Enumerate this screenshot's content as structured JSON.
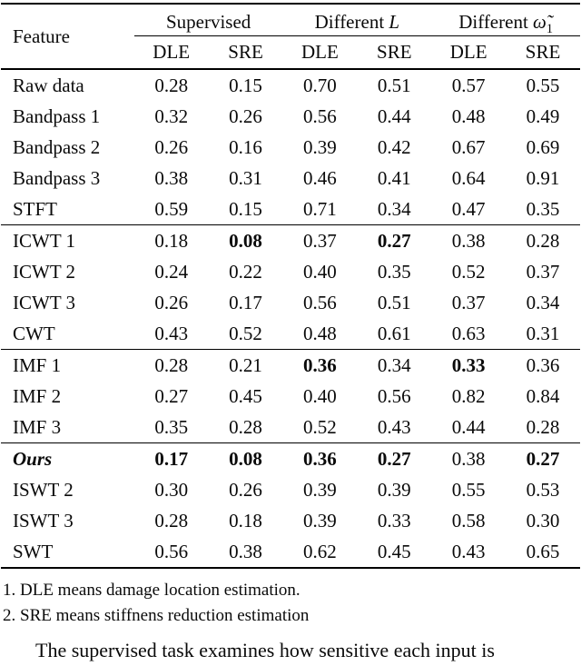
{
  "table": {
    "feature_header": "Feature",
    "groups": [
      {
        "label": "Supervised",
        "symbol": "",
        "subscript": ""
      },
      {
        "label": "Different ",
        "symbol": "L",
        "subscript": ""
      },
      {
        "label": "Different ",
        "symbol": "ω̃",
        "subscript": "1"
      }
    ],
    "subheaders": [
      "DLE",
      "SRE",
      "DLE",
      "SRE",
      "DLE",
      "SRE"
    ],
    "blocks": [
      {
        "rows": [
          {
            "feature": "Raw data",
            "values": [
              "0.28",
              "0.15",
              "0.70",
              "0.51",
              "0.57",
              "0.55"
            ],
            "bold": [
              false,
              false,
              false,
              false,
              false,
              false
            ]
          },
          {
            "feature": "Bandpass 1",
            "values": [
              "0.32",
              "0.26",
              "0.56",
              "0.44",
              "0.48",
              "0.49"
            ],
            "bold": [
              false,
              false,
              false,
              false,
              false,
              false
            ]
          },
          {
            "feature": "Bandpass 2",
            "values": [
              "0.26",
              "0.16",
              "0.39",
              "0.42",
              "0.67",
              "0.69"
            ],
            "bold": [
              false,
              false,
              false,
              false,
              false,
              false
            ]
          },
          {
            "feature": "Bandpass 3",
            "values": [
              "0.38",
              "0.31",
              "0.46",
              "0.41",
              "0.64",
              "0.91"
            ],
            "bold": [
              false,
              false,
              false,
              false,
              false,
              false
            ]
          },
          {
            "feature": "STFT",
            "values": [
              "0.59",
              "0.15",
              "0.71",
              "0.34",
              "0.47",
              "0.35"
            ],
            "bold": [
              false,
              false,
              false,
              false,
              false,
              false
            ]
          }
        ]
      },
      {
        "rows": [
          {
            "feature": "ICWT 1",
            "values": [
              "0.18",
              "0.08",
              "0.37",
              "0.27",
              "0.38",
              "0.28"
            ],
            "bold": [
              false,
              true,
              false,
              true,
              false,
              false
            ]
          },
          {
            "feature": "ICWT 2",
            "values": [
              "0.24",
              "0.22",
              "0.40",
              "0.35",
              "0.52",
              "0.37"
            ],
            "bold": [
              false,
              false,
              false,
              false,
              false,
              false
            ]
          },
          {
            "feature": "ICWT 3",
            "values": [
              "0.26",
              "0.17",
              "0.56",
              "0.51",
              "0.37",
              "0.34"
            ],
            "bold": [
              false,
              false,
              false,
              false,
              false,
              false
            ]
          },
          {
            "feature": "CWT",
            "values": [
              "0.43",
              "0.52",
              "0.48",
              "0.61",
              "0.63",
              "0.31"
            ],
            "bold": [
              false,
              false,
              false,
              false,
              false,
              false
            ]
          }
        ]
      },
      {
        "rows": [
          {
            "feature": "IMF 1",
            "values": [
              "0.28",
              "0.21",
              "0.36",
              "0.34",
              "0.33",
              "0.36"
            ],
            "bold": [
              false,
              false,
              true,
              false,
              true,
              false
            ]
          },
          {
            "feature": "IMF 2",
            "values": [
              "0.27",
              "0.45",
              "0.40",
              "0.56",
              "0.82",
              "0.84"
            ],
            "bold": [
              false,
              false,
              false,
              false,
              false,
              false
            ]
          },
          {
            "feature": "IMF 3",
            "values": [
              "0.35",
              "0.28",
              "0.52",
              "0.43",
              "0.44",
              "0.28"
            ],
            "bold": [
              false,
              false,
              false,
              false,
              false,
              false
            ]
          }
        ]
      },
      {
        "rows": [
          {
            "feature": "Ours",
            "feature_style": "bold-italic",
            "values": [
              "0.17",
              "0.08",
              "0.36",
              "0.27",
              "0.38",
              "0.27"
            ],
            "bold": [
              true,
              true,
              true,
              true,
              false,
              true
            ]
          },
          {
            "feature": "ISWT 2",
            "values": [
              "0.30",
              "0.26",
              "0.39",
              "0.39",
              "0.55",
              "0.53"
            ],
            "bold": [
              false,
              false,
              false,
              false,
              false,
              false
            ]
          },
          {
            "feature": "ISWT 3",
            "values": [
              "0.28",
              "0.18",
              "0.39",
              "0.33",
              "0.58",
              "0.30"
            ],
            "bold": [
              false,
              false,
              false,
              false,
              false,
              false
            ]
          },
          {
            "feature": "SWT",
            "values": [
              "0.56",
              "0.38",
              "0.62",
              "0.45",
              "0.43",
              "0.65"
            ],
            "bold": [
              false,
              false,
              false,
              false,
              false,
              false
            ]
          }
        ]
      }
    ]
  },
  "footnotes": [
    "1. DLE means damage location estimation.",
    "2. SRE means stiffnens reduction estimation"
  ],
  "paragraph": "The supervised task examines how sensitive each input is"
}
